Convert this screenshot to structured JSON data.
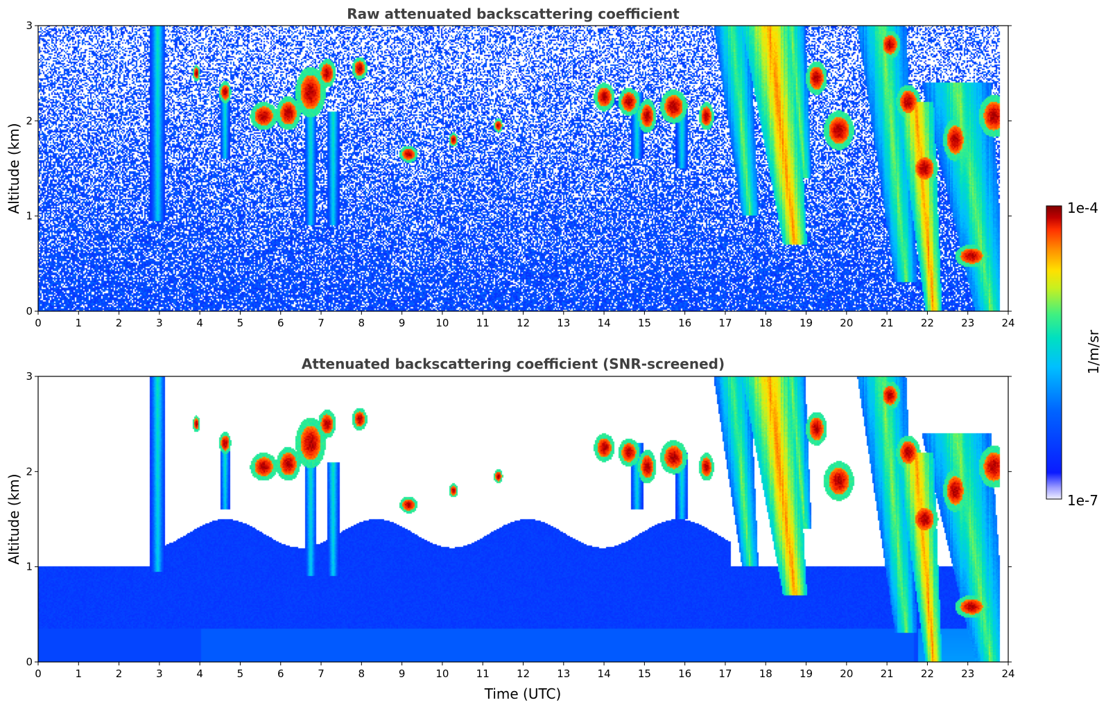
{
  "chart_data": [
    {
      "type": "heatmap",
      "title": "Raw attenuated backscattering coefficient",
      "xlabel": "",
      "ylabel": "Altitude (km)",
      "xlim": [
        0,
        24
      ],
      "ylim": [
        0,
        3
      ],
      "x_ticks": [
        "0",
        "1",
        "2",
        "3",
        "4",
        "5",
        "6",
        "7",
        "8",
        "9",
        "10",
        "11",
        "12",
        "13",
        "14",
        "15",
        "16",
        "17",
        "18",
        "19",
        "20",
        "21",
        "22",
        "23",
        "24"
      ],
      "y_ticks": [
        "0",
        "1",
        "2",
        "3"
      ],
      "features": [
        {
          "kind": "plume",
          "t": 2.95,
          "z0": 0.95,
          "z1": 3.0,
          "w": 0.18,
          "level": "medium"
        },
        {
          "kind": "plume",
          "t": 4.6,
          "z0": 1.6,
          "z1": 2.3,
          "w": 0.12,
          "level": "medium"
        },
        {
          "kind": "plume",
          "t": 6.7,
          "z0": 0.9,
          "z1": 2.2,
          "w": 0.15,
          "level": "medium"
        },
        {
          "kind": "plume",
          "t": 7.25,
          "z0": 0.9,
          "z1": 2.1,
          "w": 0.15,
          "level": "medium"
        },
        {
          "kind": "plume",
          "t": 14.7,
          "z0": 1.6,
          "z1": 2.3,
          "w": 0.15,
          "level": "medium"
        },
        {
          "kind": "plume",
          "t": 15.8,
          "z0": 1.5,
          "z1": 2.2,
          "w": 0.15,
          "level": "medium"
        },
        {
          "kind": "cloud",
          "t": 3.9,
          "z": 2.5,
          "w": 0.12,
          "h": 0.06
        },
        {
          "kind": "cloud",
          "t": 4.6,
          "z": 2.3,
          "w": 0.2,
          "h": 0.08
        },
        {
          "kind": "cloud",
          "t": 5.55,
          "z": 2.05,
          "w": 0.45,
          "h": 0.1
        },
        {
          "kind": "cloud",
          "t": 6.15,
          "z": 2.08,
          "w": 0.4,
          "h": 0.12
        },
        {
          "kind": "cloud",
          "t": 6.7,
          "z": 2.3,
          "w": 0.5,
          "h": 0.18
        },
        {
          "kind": "cloud",
          "t": 7.1,
          "z": 2.5,
          "w": 0.3,
          "h": 0.1
        },
        {
          "kind": "cloud",
          "t": 7.9,
          "z": 2.55,
          "w": 0.25,
          "h": 0.08
        },
        {
          "kind": "cloud",
          "t": 9.1,
          "z": 1.65,
          "w": 0.3,
          "h": 0.06
        },
        {
          "kind": "cloud",
          "t": 10.2,
          "z": 1.8,
          "w": 0.15,
          "h": 0.05
        },
        {
          "kind": "cloud",
          "t": 11.3,
          "z": 1.95,
          "w": 0.15,
          "h": 0.05
        },
        {
          "kind": "cloud",
          "t": 13.9,
          "z": 2.25,
          "w": 0.35,
          "h": 0.1
        },
        {
          "kind": "cloud",
          "t": 14.5,
          "z": 2.2,
          "w": 0.35,
          "h": 0.1
        },
        {
          "kind": "cloud",
          "t": 14.95,
          "z": 2.05,
          "w": 0.3,
          "h": 0.12
        },
        {
          "kind": "cloud",
          "t": 15.6,
          "z": 2.15,
          "w": 0.45,
          "h": 0.12
        },
        {
          "kind": "cloud",
          "t": 16.4,
          "z": 2.05,
          "w": 0.25,
          "h": 0.1
        },
        {
          "kind": "cloud",
          "t": 19.1,
          "z": 2.45,
          "w": 0.35,
          "h": 0.12
        },
        {
          "kind": "cloud",
          "t": 19.65,
          "z": 1.9,
          "w": 0.5,
          "h": 0.14
        },
        {
          "kind": "cloud",
          "t": 20.9,
          "z": 2.8,
          "w": 0.35,
          "h": 0.1
        },
        {
          "kind": "cloud",
          "t": 21.35,
          "z": 2.2,
          "w": 0.4,
          "h": 0.12
        },
        {
          "kind": "cloud",
          "t": 21.75,
          "z": 1.5,
          "w": 0.45,
          "h": 0.12
        },
        {
          "kind": "cloud",
          "t": 22.5,
          "z": 1.8,
          "w": 0.4,
          "h": 0.15
        },
        {
          "kind": "cloud",
          "t": 23.45,
          "z": 2.05,
          "w": 0.5,
          "h": 0.15
        },
        {
          "kind": "cloud",
          "t": 22.9,
          "z": 0.58,
          "w": 0.55,
          "h": 0.08
        },
        {
          "kind": "fallstreak",
          "t0": 16.8,
          "t1": 17.7,
          "ztop": 3.0,
          "zbot": 1.0,
          "level": "medium"
        },
        {
          "kind": "fallstreak",
          "t0": 17.6,
          "t1": 18.9,
          "ztop": 3.0,
          "zbot": 0.7,
          "level": "high"
        },
        {
          "kind": "fallstreak",
          "t0": 18.3,
          "t1": 19.0,
          "ztop": 3.0,
          "zbot": 1.4,
          "level": "medium"
        },
        {
          "kind": "fallstreak",
          "t0": 20.4,
          "t1": 21.6,
          "ztop": 3.0,
          "zbot": 0.3,
          "level": "medium"
        },
        {
          "kind": "fallstreak",
          "t0": 21.3,
          "t1": 22.2,
          "ztop": 2.2,
          "zbot": 0.0,
          "level": "high"
        },
        {
          "kind": "fallstreak",
          "t0": 22.1,
          "t1": 23.8,
          "ztop": 2.4,
          "zbot": 0.0,
          "level": "medium"
        }
      ]
    },
    {
      "type": "heatmap",
      "title": "Attenuated backscattering coefficient (SNR-screened)",
      "xlabel": "Time (UTC)",
      "ylabel": "Altitude (km)",
      "xlim": [
        0,
        24
      ],
      "ylim": [
        0,
        3
      ],
      "x_ticks": [
        "0",
        "1",
        "2",
        "3",
        "4",
        "5",
        "6",
        "7",
        "8",
        "9",
        "10",
        "11",
        "12",
        "13",
        "14",
        "15",
        "16",
        "17",
        "18",
        "19",
        "20",
        "21",
        "22",
        "23",
        "24"
      ],
      "y_ticks": [
        "0",
        "1",
        "2",
        "3"
      ],
      "features": "same as panel 1, with low-SNR pixels removed (white)"
    }
  ],
  "colorbar": {
    "top_label": "1e-4",
    "bottom_label": "1e-7",
    "unit_label": "1/m/sr",
    "min": 1e-07,
    "max": 0.0001,
    "scale": "log",
    "colormap": [
      "#efefff",
      "#0a1bff",
      "#0064ff",
      "#00bfff",
      "#00e0c0",
      "#40f080",
      "#c8f020",
      "#ffe000",
      "#ff9000",
      "#ff3000",
      "#c00000",
      "#800000"
    ]
  }
}
